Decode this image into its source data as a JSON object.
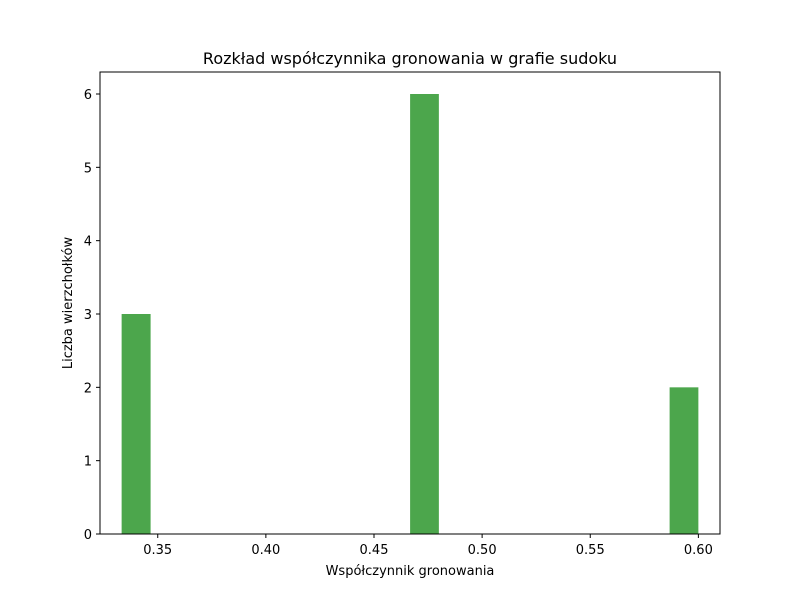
{
  "chart_data": {
    "type": "bar",
    "title": "Rozkład współczynnika gronowania w grafie sudoku",
    "xlabel": "Współczynnik gronowania",
    "ylabel": "Liczba wierzchołków",
    "xlim": [
      0.3233,
      0.61
    ],
    "ylim": [
      0,
      6.3
    ],
    "xticks": [
      0.35,
      0.4,
      0.45,
      0.5,
      0.55,
      0.6
    ],
    "xtick_labels": [
      "0.35",
      "0.40",
      "0.45",
      "0.50",
      "0.55",
      "0.60"
    ],
    "yticks": [
      0,
      1,
      2,
      3,
      4,
      5,
      6
    ],
    "ytick_labels": [
      "0",
      "1",
      "2",
      "3",
      "4",
      "5",
      "6"
    ],
    "bin_width": 0.01333,
    "bars": [
      {
        "x_start": 0.3333,
        "x_end": 0.3467,
        "value": 3
      },
      {
        "x_start": 0.4667,
        "x_end": 0.48,
        "value": 6
      },
      {
        "x_start": 0.5867,
        "x_end": 0.6,
        "value": 2
      }
    ],
    "bar_color": "#4ca64c",
    "grid": false,
    "legend": "none"
  }
}
